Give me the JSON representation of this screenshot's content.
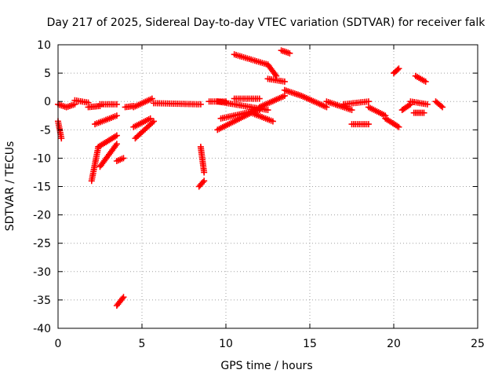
{
  "chart_data": {
    "type": "scatter",
    "title": "Day 217 of 2025, Sidereal Day-to-day VTEC variation (SDTVAR) for receiver falk",
    "xlabel": "GPS time / hours",
    "ylabel": "SDTVAR / TECUs",
    "xlim": [
      0,
      25
    ],
    "ylim": [
      -40,
      10
    ],
    "xticks": [
      0,
      5,
      10,
      15,
      20,
      25
    ],
    "yticks": [
      10,
      5,
      0,
      -5,
      -10,
      -15,
      -20,
      -25,
      -30,
      -35,
      -40
    ],
    "grid": true,
    "marker": "+",
    "color": "#ff0000",
    "segments": [
      {
        "x": [
          0.0,
          0.5
        ],
        "y": [
          -0.5,
          -1.0
        ]
      },
      {
        "x": [
          0.0,
          0.2
        ],
        "y": [
          -3.5,
          -6.5
        ]
      },
      {
        "x": [
          0.5,
          1.0
        ],
        "y": [
          -1.0,
          -0.5
        ]
      },
      {
        "x": [
          1.0,
          1.8
        ],
        "y": [
          0.2,
          -0.2
        ]
      },
      {
        "x": [
          1.8,
          2.5
        ],
        "y": [
          -1.0,
          -0.8
        ]
      },
      {
        "x": [
          2.5,
          3.5
        ],
        "y": [
          -0.5,
          -0.5
        ]
      },
      {
        "x": [
          2.0,
          2.4
        ],
        "y": [
          -14.0,
          -8.0
        ]
      },
      {
        "x": [
          2.4,
          3.5
        ],
        "y": [
          -8.0,
          -6.0
        ]
      },
      {
        "x": [
          2.2,
          3.5
        ],
        "y": [
          -4.0,
          -2.5
        ]
      },
      {
        "x": [
          2.5,
          3.5
        ],
        "y": [
          -11.5,
          -7.5
        ]
      },
      {
        "x": [
          3.5,
          3.9
        ],
        "y": [
          -10.5,
          -10.0
        ]
      },
      {
        "x": [
          3.5,
          3.9
        ],
        "y": [
          -36.0,
          -34.5
        ]
      },
      {
        "x": [
          4.0,
          4.5
        ],
        "y": [
          -1.0,
          -0.8
        ]
      },
      {
        "x": [
          4.5,
          5.6
        ],
        "y": [
          -1.0,
          0.5
        ]
      },
      {
        "x": [
          4.5,
          5.5
        ],
        "y": [
          -4.5,
          -3.0
        ]
      },
      {
        "x": [
          4.6,
          5.7
        ],
        "y": [
          -6.5,
          -3.5
        ]
      },
      {
        "x": [
          5.7,
          8.5
        ],
        "y": [
          -0.3,
          -0.5
        ]
      },
      {
        "x": [
          8.5,
          8.7
        ],
        "y": [
          -8.0,
          -12.5
        ]
      },
      {
        "x": [
          8.4,
          8.7
        ],
        "y": [
          -15.0,
          -14.0
        ]
      },
      {
        "x": [
          9.0,
          10.0
        ],
        "y": [
          0.0,
          0.0
        ]
      },
      {
        "x": [
          9.5,
          12.5
        ],
        "y": [
          0.0,
          -1.5
        ]
      },
      {
        "x": [
          9.5,
          11.5
        ],
        "y": [
          -5.0,
          -2.0
        ]
      },
      {
        "x": [
          9.7,
          12.0
        ],
        "y": [
          -3.0,
          -1.5
        ]
      },
      {
        "x": [
          10.5,
          12.5
        ],
        "y": [
          8.3,
          6.5
        ]
      },
      {
        "x": [
          12.5,
          13.0
        ],
        "y": [
          6.5,
          4.5
        ]
      },
      {
        "x": [
          12.5,
          13.5
        ],
        "y": [
          4.0,
          3.5
        ]
      },
      {
        "x": [
          10.5,
          12.0
        ],
        "y": [
          0.5,
          0.5
        ]
      },
      {
        "x": [
          12.0,
          13.5
        ],
        "y": [
          -1.0,
          1.0
        ]
      },
      {
        "x": [
          11.5,
          12.8
        ],
        "y": [
          -2.0,
          -3.5
        ]
      },
      {
        "x": [
          13.3,
          13.8
        ],
        "y": [
          9.0,
          8.5
        ]
      },
      {
        "x": [
          13.5,
          14.5
        ],
        "y": [
          2.0,
          1.0
        ]
      },
      {
        "x": [
          14.5,
          16.0
        ],
        "y": [
          1.0,
          -1.0
        ]
      },
      {
        "x": [
          16.0,
          17.5
        ],
        "y": [
          0.0,
          -1.5
        ]
      },
      {
        "x": [
          17.0,
          18.5
        ],
        "y": [
          -0.5,
          0.0
        ]
      },
      {
        "x": [
          17.5,
          18.5
        ],
        "y": [
          -4.0,
          -4.0
        ]
      },
      {
        "x": [
          18.5,
          19.5
        ],
        "y": [
          -1.0,
          -2.5
        ]
      },
      {
        "x": [
          19.5,
          20.3
        ],
        "y": [
          -3.0,
          -4.5
        ]
      },
      {
        "x": [
          20.0,
          20.3
        ],
        "y": [
          5.0,
          5.8
        ]
      },
      {
        "x": [
          20.5,
          21.0
        ],
        "y": [
          -1.5,
          -0.5
        ]
      },
      {
        "x": [
          21.0,
          22.0
        ],
        "y": [
          0.0,
          -0.5
        ]
      },
      {
        "x": [
          21.2,
          21.8
        ],
        "y": [
          -2.0,
          -2.0
        ]
      },
      {
        "x": [
          21.3,
          21.9
        ],
        "y": [
          4.5,
          3.5
        ]
      },
      {
        "x": [
          22.5,
          22.9
        ],
        "y": [
          0.0,
          -1.0
        ]
      }
    ]
  }
}
